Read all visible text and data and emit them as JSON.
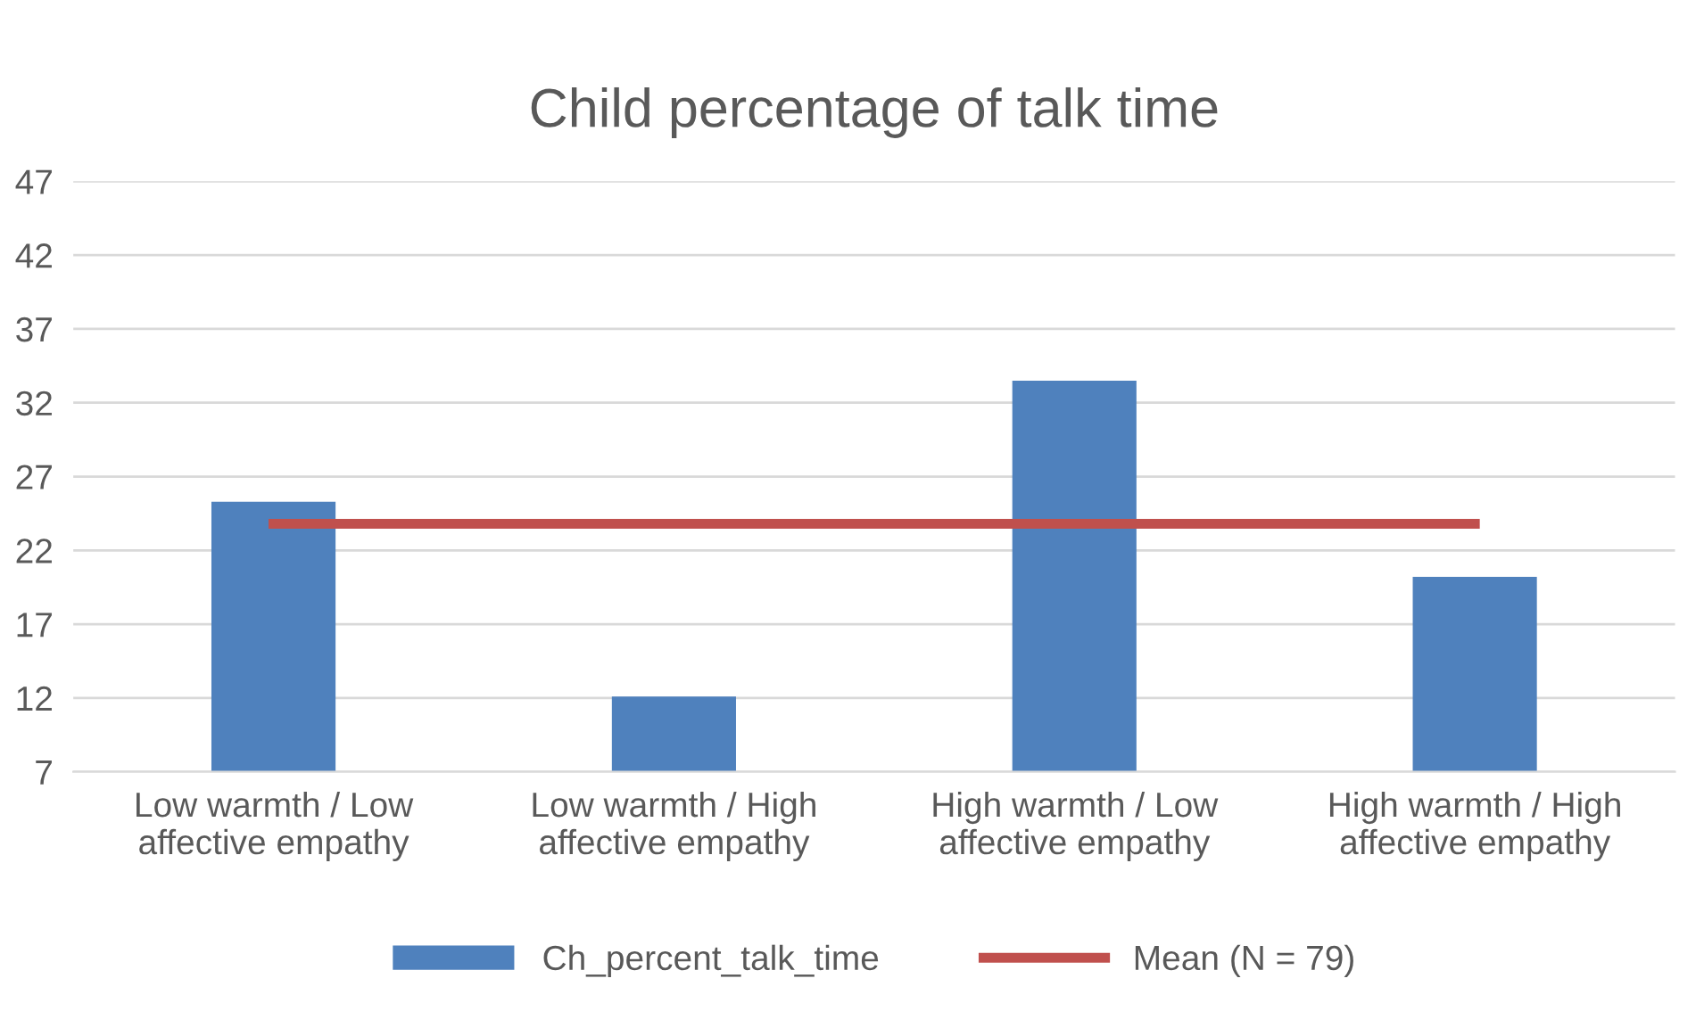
{
  "chart_data": {
    "type": "bar",
    "title": "Child percentage of talk time",
    "categories": [
      "Low warmth / Low\naffective empathy",
      "Low warmth / High\naffective empathy",
      "High warmth / Low\naffective empathy",
      "High warmth / High\naffective empathy"
    ],
    "series": [
      {
        "name": "Ch_percent_talk_time",
        "color": "#4f81bd",
        "values": [
          25.3,
          12.1,
          33.5,
          20.2
        ]
      },
      {
        "name": "Mean (N = 79)",
        "type": "line",
        "color": "#c0504d",
        "values": [
          23.8,
          23.8,
          23.8,
          23.8
        ]
      }
    ],
    "ylim": [
      7,
      47
    ],
    "yticks": [
      7,
      12,
      17,
      22,
      27,
      32,
      37,
      42,
      47
    ],
    "grid": "y",
    "legend": "bottom",
    "marker": "none"
  }
}
